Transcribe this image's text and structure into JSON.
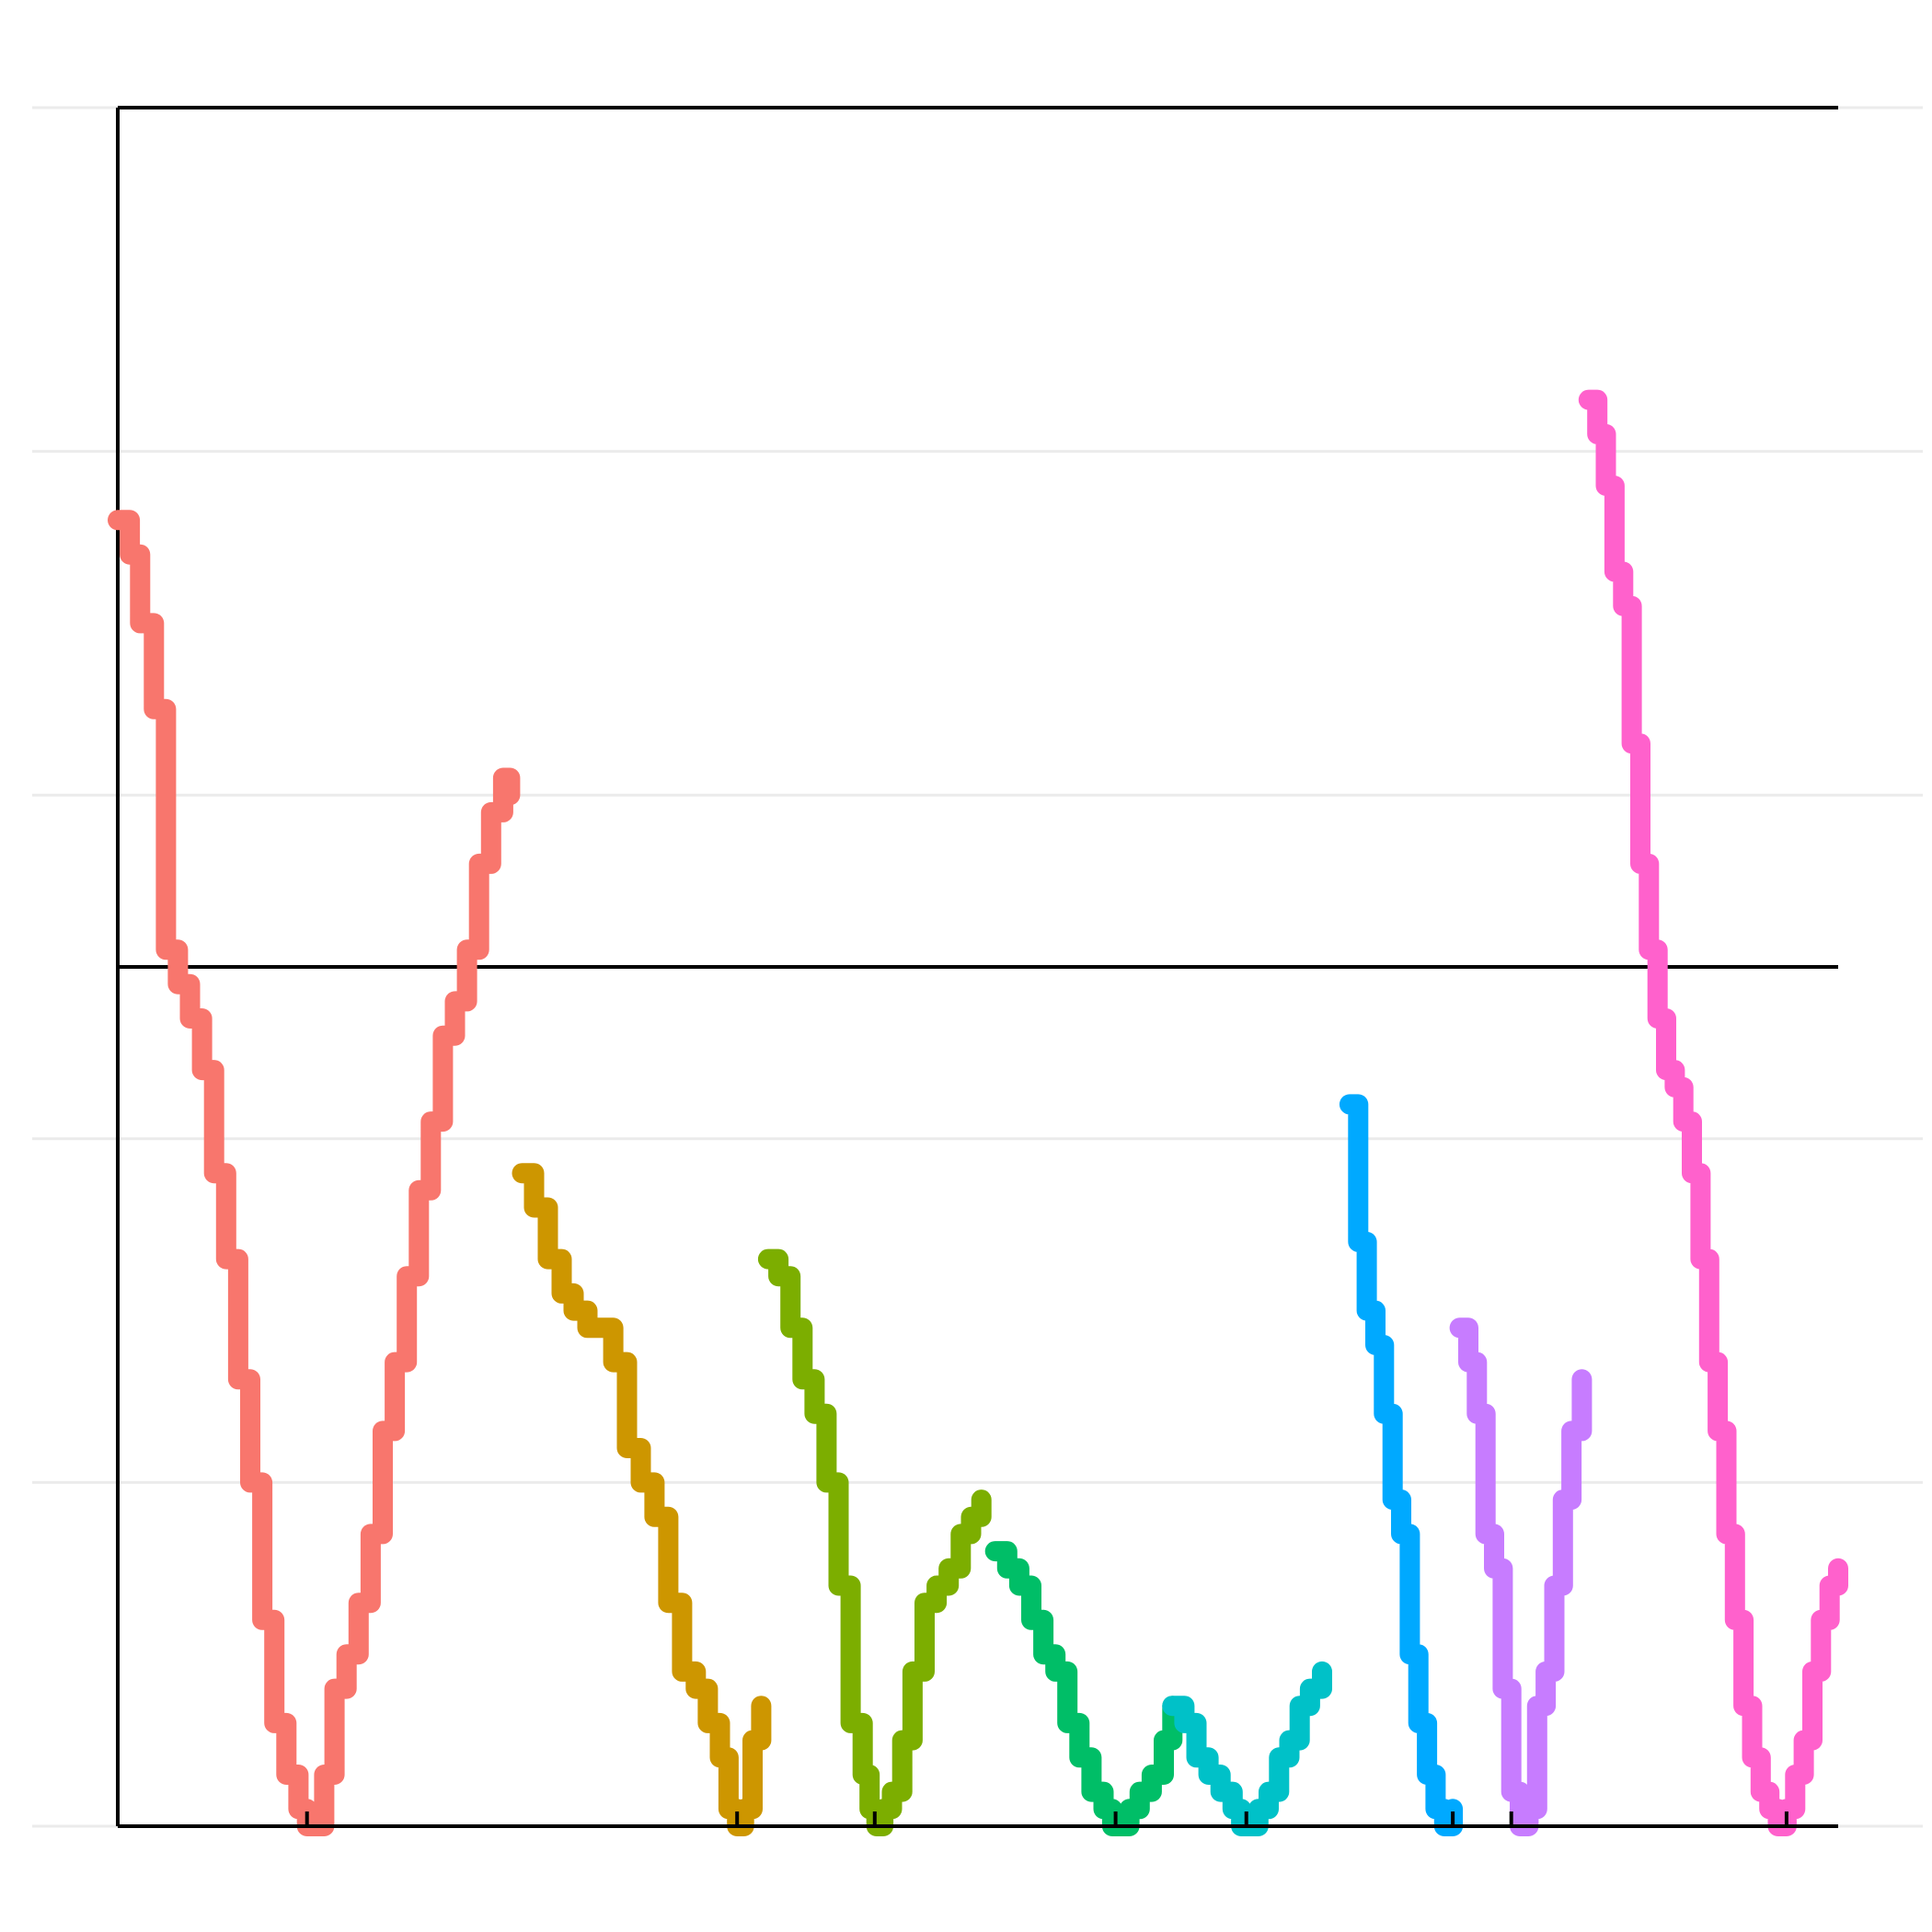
{
  "chart_data": {
    "type": "line",
    "title": "",
    "xlabel": "",
    "ylabel": "",
    "xlim": [
      0,
      100
    ],
    "ylim": [
      0,
      100
    ],
    "grid": true,
    "legend": "none",
    "gridlines_y": [
      0,
      20,
      40,
      60,
      80,
      100
    ],
    "reference_line_y": 50,
    "x_ticks": [
      11,
      36,
      44,
      58,
      65.6,
      77.6,
      81,
      97
    ],
    "series": [
      {
        "color": "#F8766D",
        "x": [
          0,
          0.7,
          1.3,
          2.1,
          2.8,
          3.5,
          4.2,
          4.9,
          5.6,
          6.3,
          7.0,
          7.7,
          8.4,
          9.1,
          9.8,
          10.5,
          11.0,
          11.5,
          12.0,
          12.6,
          13.3,
          14.0,
          14.7,
          15.4,
          16.1,
          16.8,
          17.5,
          18.2,
          18.9,
          19.6,
          20.3,
          21.0,
          21.7,
          22.4,
          22.8
        ],
        "y": [
          76,
          74,
          70,
          65,
          51,
          49,
          47,
          44,
          38,
          33,
          26,
          20,
          12,
          6,
          3,
          1,
          0,
          0,
          3,
          8,
          10,
          13,
          17,
          23,
          27,
          32,
          37,
          41,
          46,
          48,
          51,
          56,
          59,
          61,
          60
        ]
      },
      {
        "color": "#CD9600",
        "x": [
          23.5,
          24.2,
          25.0,
          25.8,
          26.5,
          27.3,
          28.0,
          28.8,
          29.6,
          30.4,
          31.2,
          32.0,
          32.8,
          33.6,
          34.3,
          35.0,
          35.5,
          36.0,
          36.4,
          36.9,
          37.4
        ],
        "y": [
          38,
          36,
          33,
          31,
          30,
          29,
          29,
          27,
          22,
          20,
          18,
          13,
          9,
          8,
          6,
          4,
          1,
          0,
          1,
          5,
          7
        ]
      },
      {
        "color": "#7CAE00",
        "x": [
          37.8,
          38.4,
          39.1,
          39.8,
          40.5,
          41.2,
          41.9,
          42.6,
          43.3,
          43.7,
          44.1,
          44.5,
          45.0,
          45.6,
          46.2,
          46.9,
          47.6,
          48.3,
          49.0,
          49.6,
          50.2
        ],
        "y": [
          33,
          32,
          29,
          26,
          24,
          20,
          14,
          6,
          3,
          1,
          0,
          1,
          2,
          5,
          9,
          13,
          14,
          15,
          17,
          18,
          19
        ]
      },
      {
        "color": "#00BE67",
        "x": [
          51.0,
          51.7,
          52.4,
          53.1,
          53.8,
          54.5,
          55.2,
          55.9,
          56.6,
          57.3,
          57.8,
          58.3,
          58.8,
          59.4,
          60.1,
          60.8,
          61.3
        ],
        "y": [
          16,
          15,
          14,
          12,
          10,
          9,
          6,
          4,
          2,
          1,
          0,
          0,
          1,
          2,
          3,
          5,
          7
        ]
      },
      {
        "color": "#00C1C8",
        "x": [
          61.3,
          62.0,
          62.7,
          63.4,
          64.1,
          64.8,
          65.3,
          65.8,
          66.3,
          66.9,
          67.5,
          68.1,
          68.7,
          69.3,
          70.0
        ],
        "y": [
          7,
          6,
          4,
          3,
          2,
          1,
          0,
          0,
          1,
          2,
          4,
          5,
          7,
          8,
          9
        ]
      },
      {
        "color": "#00A9FF",
        "x": [
          71.6,
          72.1,
          72.6,
          73.1,
          73.6,
          74.1,
          74.6,
          75.1,
          75.6,
          76.1,
          76.6,
          77.1,
          77.6
        ],
        "y": [
          42,
          34,
          30,
          28,
          24,
          19,
          17,
          10,
          6,
          3,
          1,
          0,
          1
        ]
      },
      {
        "color": "#C77CFF",
        "x": [
          78.0,
          78.5,
          79.0,
          79.5,
          80.0,
          80.5,
          81.0,
          81.5,
          82.0,
          82.5,
          83.0,
          83.5,
          84.0,
          84.5,
          85.1
        ],
        "y": [
          29,
          27,
          24,
          17,
          15,
          8,
          2,
          0,
          1,
          7,
          9,
          14,
          19,
          23,
          26
        ]
      },
      {
        "color": "#FF61CC",
        "x": [
          85.5,
          86.0,
          86.5,
          87.0,
          87.5,
          88.0,
          88.5,
          89.0,
          89.5,
          90.0,
          90.5,
          91.0,
          91.5,
          92.0,
          92.5,
          93.0,
          93.5,
          94.0,
          94.5,
          95.0,
          95.5,
          96.0,
          96.5,
          97.0,
          97.5,
          98.0,
          98.5,
          99.0,
          99.5,
          100.0
        ],
        "y": [
          83,
          81,
          78,
          73,
          71,
          63,
          56,
          51,
          47,
          44,
          43,
          41,
          38,
          33,
          27,
          23,
          17,
          12,
          7,
          4,
          2,
          1,
          0,
          1,
          3,
          5,
          9,
          12,
          14,
          15
        ]
      }
    ]
  }
}
